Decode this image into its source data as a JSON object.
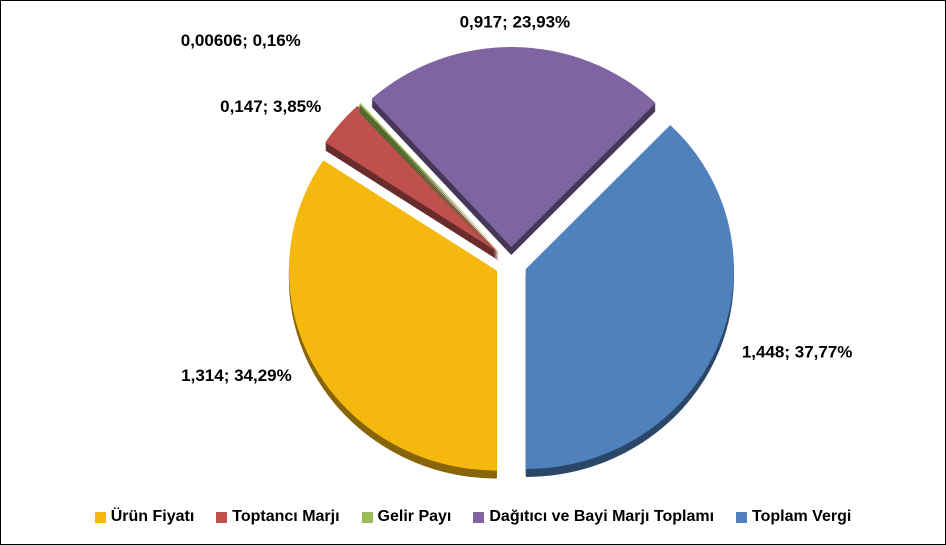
{
  "chart_data": {
    "type": "pie",
    "categories": [
      "Ürün Fiyatı",
      "Toptancı Marjı",
      "Gelir Payı",
      "Dağıtıcı ve Bayi Marjı Toplamı",
      "Toplam Vergi"
    ],
    "values": [
      1.314,
      0.147,
      0.00606,
      0.917,
      1.448
    ],
    "value_labels": [
      "1,314; 34,29%",
      "0,147; 3,85%",
      "0,00606; 0,16%",
      "0,917; 23,93%",
      "1,448; 37,77%"
    ],
    "colors": [
      "#f5b80f",
      "#c0504d",
      "#9bbb59",
      "#8064a2",
      "#4f81bd"
    ],
    "legend": "bottom"
  }
}
